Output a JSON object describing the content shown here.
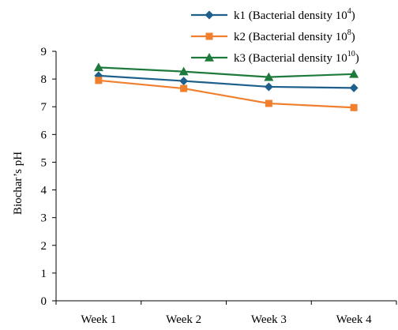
{
  "chart_data": {
    "type": "line",
    "categories": [
      "Week 1",
      "Week 2",
      "Week 3",
      "Week 4"
    ],
    "series": [
      {
        "name": "k1 (Bacterial density 10",
        "exp": "4",
        "color": "#1f5f8b",
        "marker": "diamond",
        "values": [
          8.12,
          7.93,
          7.72,
          7.68
        ]
      },
      {
        "name": "k2 (Bacterial density 10",
        "exp": "8",
        "color": "#f07f2e",
        "marker": "square",
        "values": [
          7.95,
          7.66,
          7.12,
          6.97
        ]
      },
      {
        "name": "k3 (Bacterial density 10",
        "exp": "10",
        "color": "#1e7a3c",
        "marker": "triangle",
        "values": [
          8.42,
          8.27,
          8.07,
          8.18
        ]
      }
    ],
    "ylabel": "Biochar’s pH",
    "ylim": [
      0,
      9
    ],
    "yticks": [
      "0",
      "1",
      "2",
      "3",
      "4",
      "5",
      "6",
      "7",
      "8",
      "9"
    ],
    "grid": false,
    "legend_position": "top-right"
  }
}
